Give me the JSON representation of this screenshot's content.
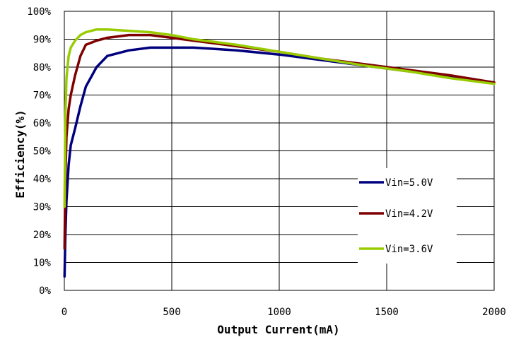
{
  "chart_data": {
    "type": "line",
    "xlabel": "Output Current(mA)",
    "ylabel": "Efficiency(%)",
    "xlim": [
      0,
      2000
    ],
    "ylim": [
      0,
      100
    ],
    "xticks": [
      "0",
      "500",
      "1000",
      "1500",
      "2000"
    ],
    "yticks": [
      "0%",
      "10%",
      "20%",
      "30%",
      "40%",
      "50%",
      "60%",
      "70%",
      "80%",
      "90%",
      "100%"
    ],
    "grid": true,
    "legend_position": "lower-right",
    "series": [
      {
        "name": "Vin=5.0V",
        "color": "#00007f",
        "x": [
          1,
          5,
          10,
          20,
          30,
          50,
          75,
          100,
          150,
          200,
          300,
          400,
          500,
          600,
          700,
          800,
          1000,
          1200,
          1400,
          1600,
          1800,
          2000
        ],
        "y": [
          5,
          20,
          32,
          45,
          52,
          58,
          66,
          73,
          80,
          84,
          86,
          87,
          87,
          87,
          86.5,
          86,
          84.5,
          82.5,
          80.5,
          78.5,
          76.5,
          74.5
        ]
      },
      {
        "name": "Vin=4.2V",
        "color": "#7f0000",
        "x": [
          1,
          5,
          10,
          20,
          30,
          50,
          75,
          100,
          150,
          200,
          300,
          400,
          500,
          600,
          700,
          800,
          1000,
          1200,
          1400,
          1600,
          1800,
          2000
        ],
        "y": [
          15,
          40,
          55,
          65,
          70,
          77,
          84,
          88,
          89.5,
          90.5,
          91.5,
          91.5,
          90.5,
          89.5,
          88.5,
          87.5,
          85.5,
          83,
          81,
          79,
          77,
          74.5
        ]
      },
      {
        "name": "Vin=3.6V",
        "color": "#99cc00",
        "x": [
          1,
          5,
          10,
          20,
          30,
          50,
          75,
          100,
          150,
          200,
          300,
          400,
          500,
          600,
          700,
          800,
          1000,
          1200,
          1400,
          1600,
          1800,
          2000
        ],
        "y": [
          30,
          62,
          76,
          84,
          87,
          89.5,
          91.5,
          92.5,
          93.5,
          93.5,
          93,
          92.5,
          91.5,
          90,
          89,
          88,
          85.5,
          83,
          80.5,
          78.5,
          76,
          74
        ]
      }
    ]
  }
}
